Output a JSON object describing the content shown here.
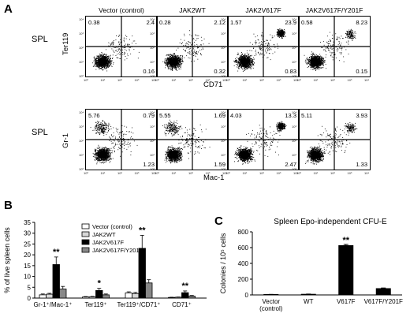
{
  "panelA": {
    "letter": "A",
    "rows": [
      {
        "tissue": "SPL",
        "ylabel": "Ter119",
        "xlabel": "CD71",
        "plots": [
          {
            "title": "Vector (control)",
            "q_ul": "0.38",
            "q_ur": "2.4",
            "q_lr": "0.16",
            "pattern": "ll"
          },
          {
            "title": "JAK2WT",
            "q_ul": "0.28",
            "q_ur": "2.12",
            "q_lr": "0.32",
            "pattern": "ll"
          },
          {
            "title": "JAK2V617F",
            "q_ul": "1.57",
            "q_ur": "23.9",
            "q_lr": "0.83",
            "pattern": "ll_ur"
          },
          {
            "title": "JAK2V617F/Y201F",
            "q_ul": "0.58",
            "q_ur": "8.23",
            "q_lr": "0.15",
            "pattern": "ll_ur_weak"
          }
        ]
      },
      {
        "tissue": "SPL",
        "ylabel": "Gr-1",
        "xlabel": "Mac-1",
        "plots": [
          {
            "title": "",
            "q_ul": "5.76",
            "q_ur": "0.79",
            "q_lr": "1.23",
            "pattern": "ll_ul"
          },
          {
            "title": "",
            "q_ul": "5.55",
            "q_ur": "1.69",
            "q_lr": "1.59",
            "pattern": "ll_ul"
          },
          {
            "title": "",
            "q_ul": "4.03",
            "q_ur": "13.3",
            "q_lr": "2.47",
            "pattern": "ll_ur"
          },
          {
            "title": "",
            "q_ul": "5.11",
            "q_ur": "3.93",
            "q_lr": "1.33",
            "pattern": "ll_ur_weak"
          }
        ]
      }
    ],
    "ticks": [
      "10⁰",
      "10¹",
      "10²",
      "10³",
      "10⁴"
    ]
  },
  "panelB": {
    "letter": "B",
    "chart_data": {
      "type": "bar",
      "ylabel": "% of live spleen cells",
      "ylim": [
        0,
        35
      ],
      "yticks": [
        0,
        5,
        10,
        15,
        20,
        25,
        30,
        35
      ],
      "categories": [
        "Gr-1⁺/Mac-1⁺",
        "Ter119⁺",
        "Ter119⁺/CD71⁺",
        "CD71⁺"
      ],
      "significance": [
        "**",
        "*",
        "**",
        "**"
      ],
      "legend_position": "top-right",
      "series": [
        {
          "name": "Vector (control)",
          "color": "#ffffff",
          "values": [
            1.5,
            0.5,
            2.4,
            0.3
          ],
          "errors": [
            0.4,
            0.2,
            0.5,
            0.1
          ]
        },
        {
          "name": "JAK2WT",
          "color": "#d8d8d8",
          "values": [
            1.8,
            0.6,
            2.1,
            0.4
          ],
          "errors": [
            0.4,
            0.2,
            0.5,
            0.1
          ]
        },
        {
          "name": "JAK2V617F",
          "color": "#000000",
          "values": [
            15.5,
            3.5,
            23,
            2.5
          ],
          "errors": [
            3.5,
            1.0,
            6.0,
            0.8
          ]
        },
        {
          "name": "JAK2V617F/Y201F",
          "color": "#888888",
          "values": [
            4.2,
            1.5,
            7.0,
            0.9
          ],
          "errors": [
            1.2,
            0.4,
            1.5,
            0.3
          ]
        }
      ]
    }
  },
  "panelC": {
    "letter": "C",
    "chart_data": {
      "type": "bar",
      "title": "Spleen Epo-independent CFU-E",
      "ylabel": "Colonies / 10⁵ cells",
      "ylim": [
        0,
        800
      ],
      "yticks": [
        0,
        200,
        400,
        600,
        800
      ],
      "categories": [
        "Vector\n(control)",
        "WT",
        "V617F",
        "V617F/Y201F"
      ],
      "values": [
        5,
        8,
        625,
        80
      ],
      "errors": [
        2,
        3,
        15,
        8
      ],
      "significance": [
        "",
        "",
        "**",
        ""
      ],
      "color": "#000000"
    }
  }
}
